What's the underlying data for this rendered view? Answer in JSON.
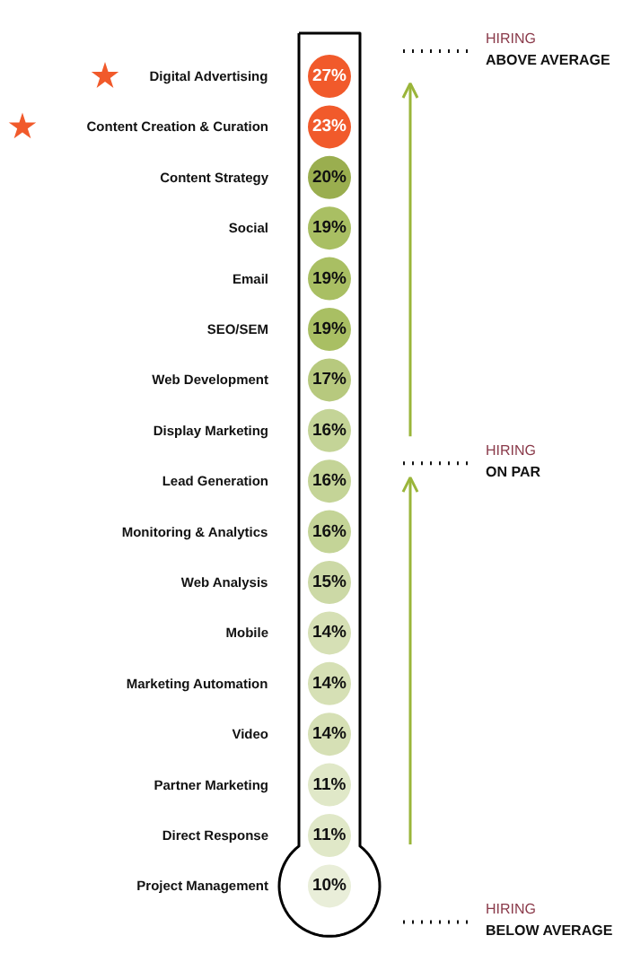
{
  "chart_data": {
    "type": "other",
    "categories": [
      "Digital Advertising",
      "Content Creation & Curation",
      "Content Strategy",
      "Social",
      "Email",
      "SEO/SEM",
      "Web Development",
      "Display Marketing",
      "Lead Generation",
      "Monitoring & Analytics",
      "Web Analysis",
      "Mobile",
      "Marketing Automation",
      "Video",
      "Partner Marketing",
      "Direct Response",
      "Project Management"
    ],
    "values": [
      27,
      23,
      20,
      19,
      19,
      19,
      17,
      16,
      16,
      16,
      15,
      14,
      14,
      14,
      11,
      11,
      10
    ],
    "colors": [
      "#f15a2b",
      "#f15a2b",
      "#9aae4f",
      "#a9bf63",
      "#a9bf63",
      "#a9bf63",
      "#b7c97e",
      "#c4d497",
      "#c4d497",
      "#c4d497",
      "#ccd9a6",
      "#d6e0b5",
      "#d6e0b5",
      "#d6e0b5",
      "#e0e8c8",
      "#e0e8c8",
      "#e9eed9"
    ],
    "value_labels": [
      "27%",
      "23%",
      "20%",
      "19%",
      "19%",
      "19%",
      "17%",
      "16%",
      "16%",
      "16%",
      "15%",
      "14%",
      "14%",
      "14%",
      "11%",
      "11%",
      "10%"
    ],
    "annotations": [
      "HIRING\nABOVE AVERAGE",
      "HIRING\nON PAR",
      "HIRING\nBELOW AVERAGE"
    ]
  }
}
